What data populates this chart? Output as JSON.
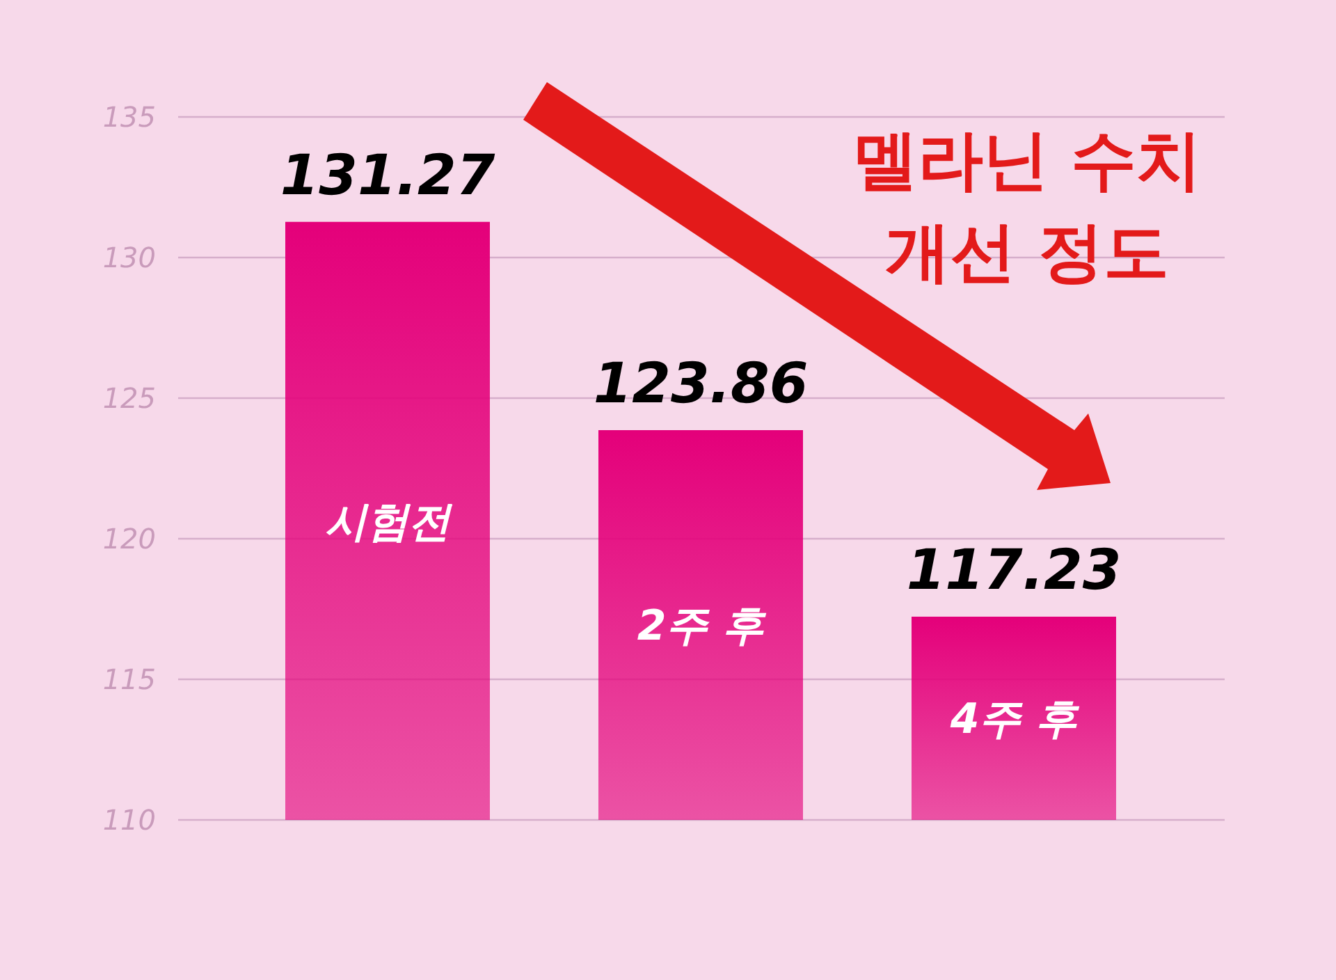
{
  "chart_data": {
    "type": "bar",
    "title": "멜라닌 수치 개선 정도",
    "categories": [
      "시험전",
      "2주 후",
      "4주 후"
    ],
    "values": [
      131.27,
      123.86,
      117.23
    ],
    "color": "#e4007a",
    "ylim": [
      110,
      135
    ],
    "yticks": [
      110,
      115,
      120,
      125,
      130,
      135
    ],
    "grid": "y",
    "data_labels": true
  }
}
